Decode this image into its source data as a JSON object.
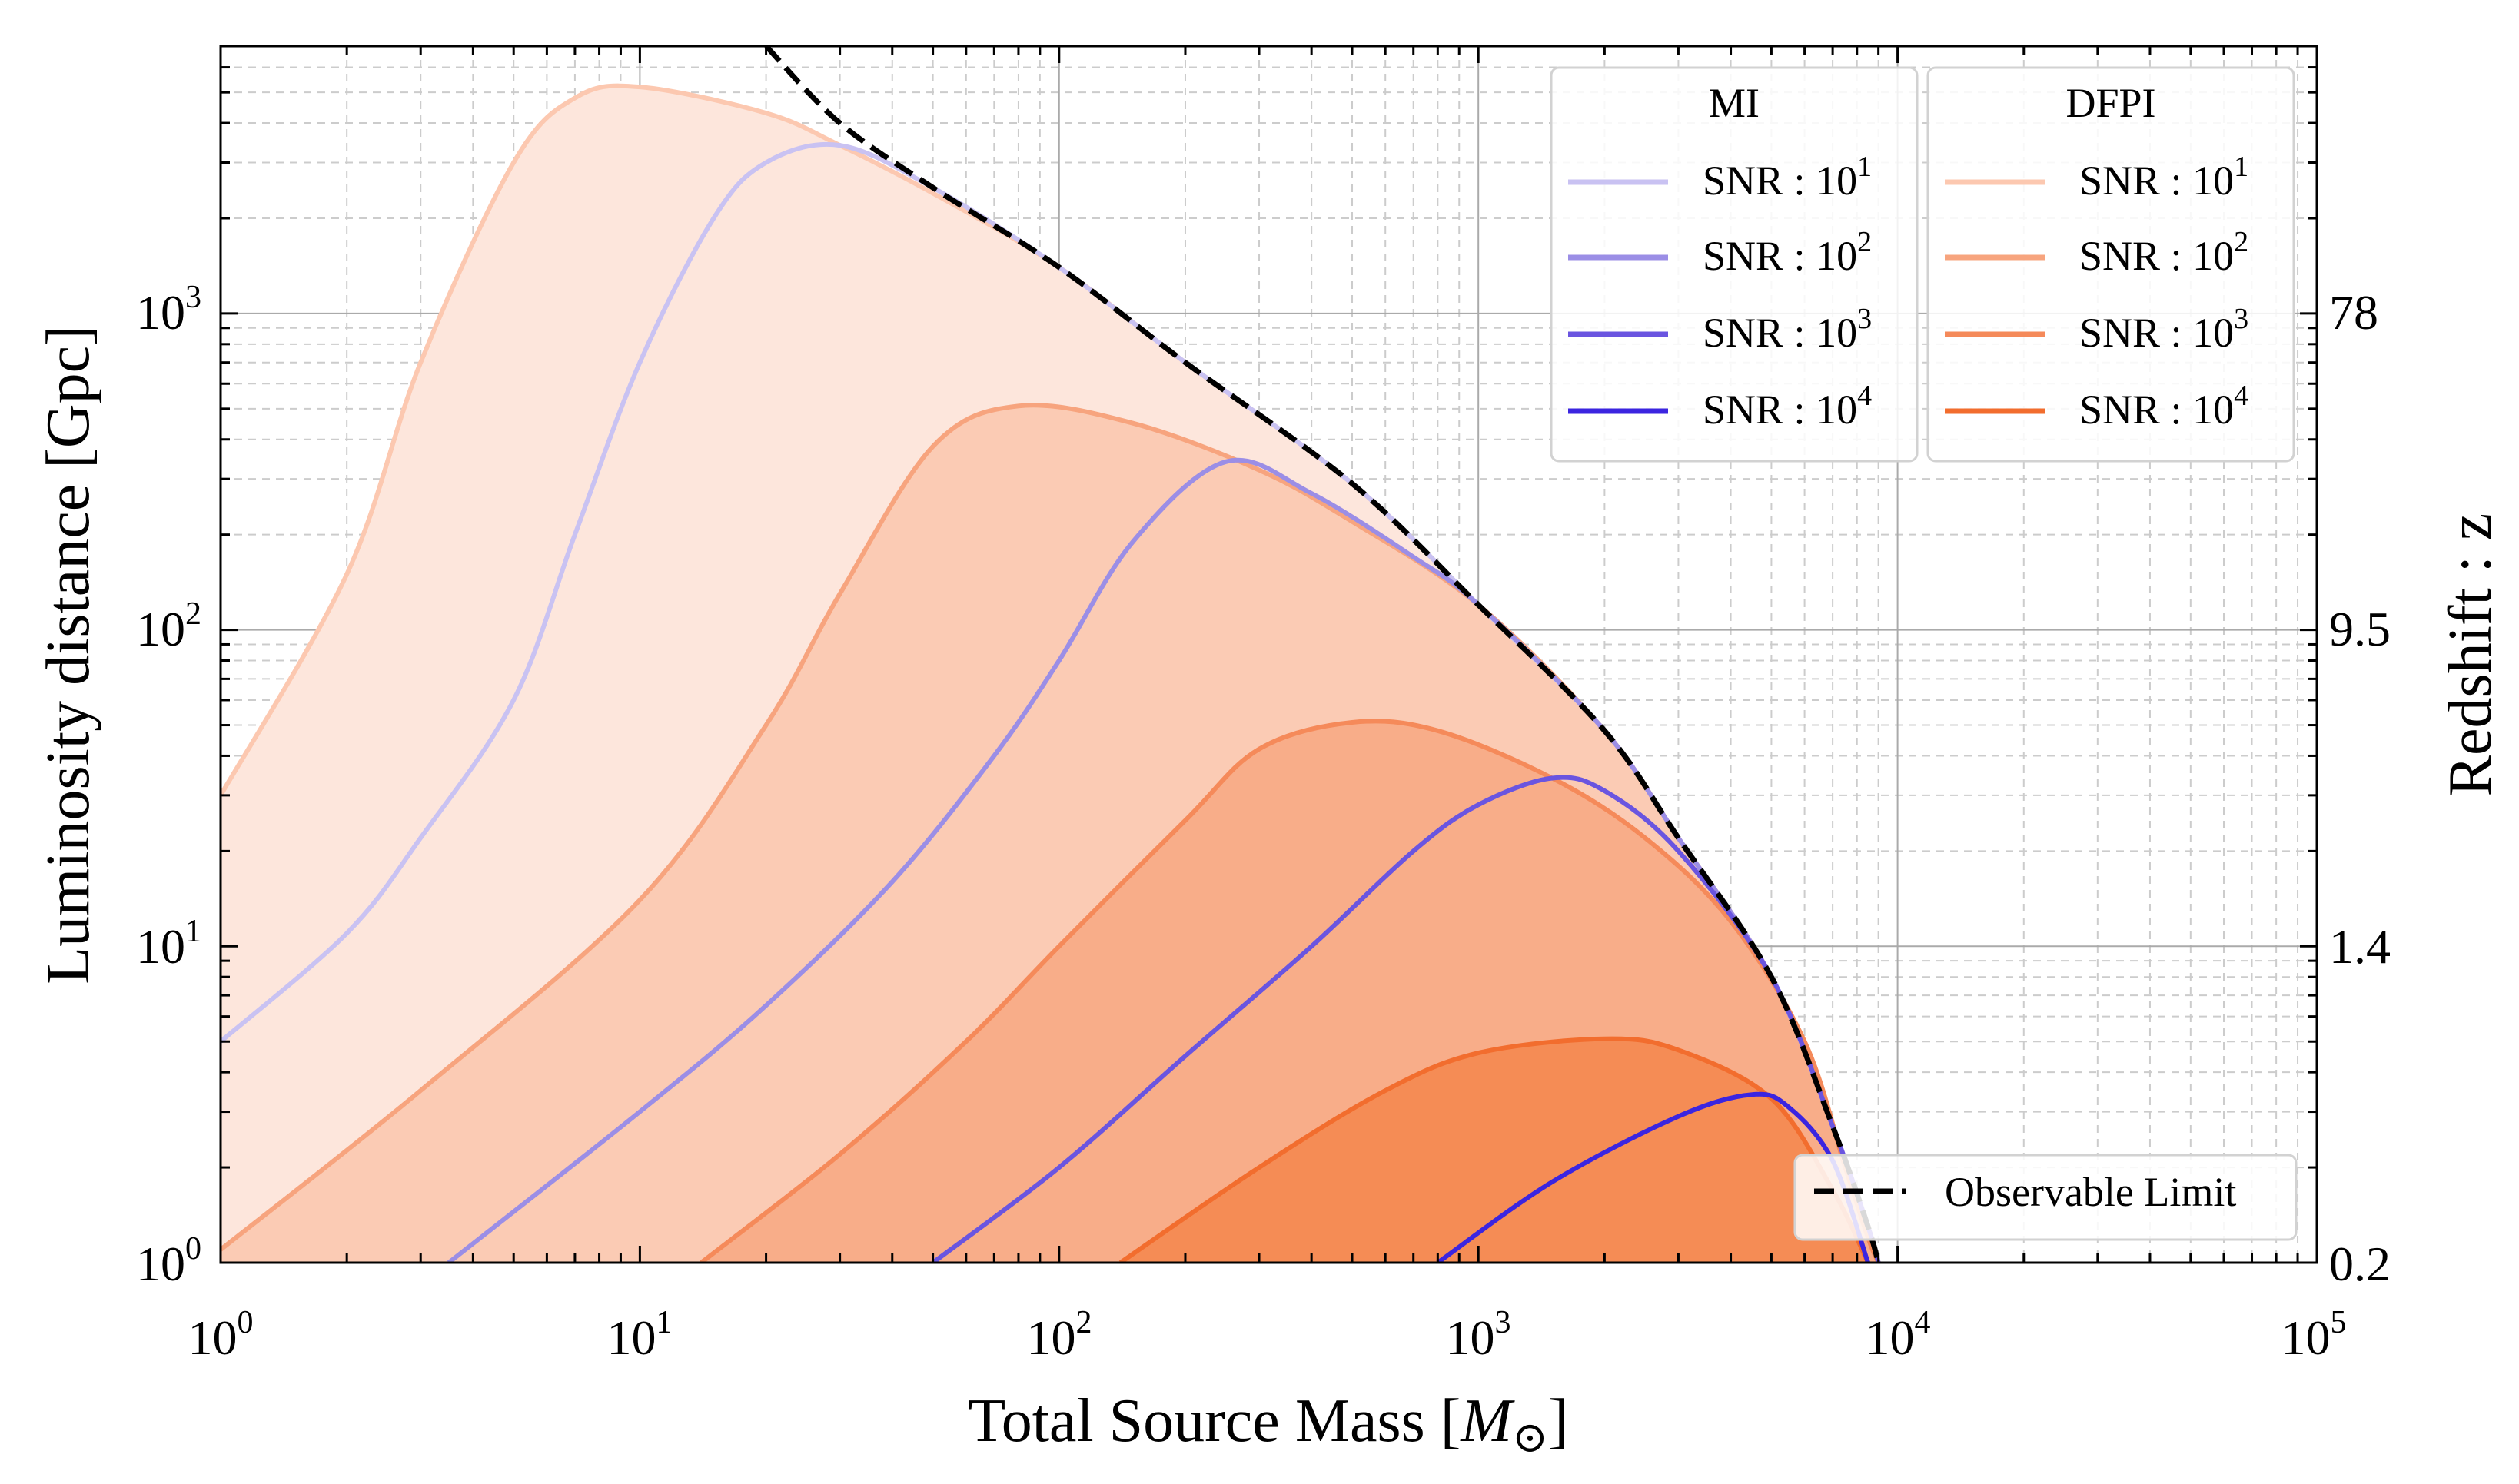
{
  "chart_data": {
    "type": "area",
    "title": "",
    "xlabel": "Total Source Mass [",
    "xlabel_symbol": "M",
    "xlabel_sub": "⊙",
    "xlabel_close": "]",
    "ylabel": "Luminosity distance [Gpc]",
    "y2label": "Redshift : z",
    "x_scale": "log",
    "y_scale": "log",
    "xlim": [
      1,
      100000
    ],
    "ylim": [
      1,
      7000
    ],
    "grid": true,
    "x_ticks": [
      {
        "base": "10",
        "exp": "0",
        "value": 1
      },
      {
        "base": "10",
        "exp": "1",
        "value": 10
      },
      {
        "base": "10",
        "exp": "2",
        "value": 100
      },
      {
        "base": "10",
        "exp": "3",
        "value": 1000
      },
      {
        "base": "10",
        "exp": "4",
        "value": 10000
      },
      {
        "base": "10",
        "exp": "5",
        "value": 100000
      }
    ],
    "y_ticks": [
      {
        "base": "10",
        "exp": "0",
        "value": 1
      },
      {
        "base": "10",
        "exp": "1",
        "value": 10
      },
      {
        "base": "10",
        "exp": "2",
        "value": 100
      },
      {
        "base": "10",
        "exp": "3",
        "value": 1000
      }
    ],
    "y2_ticks": [
      {
        "label": "0.2",
        "at_distance": 1
      },
      {
        "label": "1.4",
        "at_distance": 10
      },
      {
        "label": "9.5",
        "at_distance": 100
      },
      {
        "label": "78",
        "at_distance": 1000
      }
    ],
    "observable_limit": {
      "label": "Observable Limit",
      "color": "#000000",
      "points": [
        [
          20,
          7000
        ],
        [
          30,
          4000
        ],
        [
          50,
          2500
        ],
        [
          100,
          1400
        ],
        [
          200,
          700
        ],
        [
          500,
          290
        ],
        [
          1000,
          120
        ],
        [
          2000,
          48
        ],
        [
          3000,
          22
        ],
        [
          5000,
          8
        ],
        [
          7000,
          2.7
        ],
        [
          8500,
          1.3
        ],
        [
          9000,
          1
        ]
      ]
    },
    "legends": [
      {
        "title": "MI",
        "position": "top-right",
        "group": "MI"
      },
      {
        "title": "DFPI",
        "position": "top-right",
        "group": "DFPI"
      },
      {
        "title": "",
        "position": "lower-right",
        "group": "limit"
      }
    ],
    "series": [
      {
        "name": "DFPI SNR : 10^1",
        "group": "DFPI",
        "snr_base": "10",
        "snr_exp": "1",
        "color": "#fcc8b0",
        "fill": "#fde6dc",
        "points": [
          [
            1,
            30
          ],
          [
            2,
            150
          ],
          [
            3,
            700
          ],
          [
            5,
            3000
          ],
          [
            7,
            4800
          ],
          [
            10,
            5200
          ],
          [
            20,
            4300
          ],
          [
            30,
            3400
          ],
          [
            50,
            2400
          ],
          [
            100,
            1400
          ],
          [
            200,
            700
          ],
          [
            500,
            290
          ],
          [
            1000,
            120
          ],
          [
            2000,
            48
          ],
          [
            3000,
            22
          ],
          [
            5000,
            8
          ],
          [
            7000,
            2.7
          ],
          [
            8500,
            1.3
          ],
          [
            9000,
            1
          ]
        ]
      },
      {
        "name": "MI SNR : 10^1",
        "group": "MI",
        "snr_base": "10",
        "snr_exp": "1",
        "color": "#c9c2f2",
        "points": [
          [
            1,
            5
          ],
          [
            2,
            11
          ],
          [
            3,
            22
          ],
          [
            5,
            60
          ],
          [
            7,
            200
          ],
          [
            10,
            700
          ],
          [
            15,
            2000
          ],
          [
            20,
            3000
          ],
          [
            30,
            3400
          ],
          [
            50,
            2500
          ],
          [
            100,
            1400
          ],
          [
            200,
            700
          ],
          [
            500,
            290
          ],
          [
            1000,
            120
          ],
          [
            2000,
            48
          ],
          [
            3000,
            22
          ],
          [
            5000,
            8
          ],
          [
            7000,
            2.7
          ],
          [
            8500,
            1.3
          ],
          [
            9000,
            1
          ]
        ]
      },
      {
        "name": "DFPI SNR : 10^2",
        "group": "DFPI",
        "snr_base": "10",
        "snr_exp": "2",
        "color": "#f7a47e",
        "fill": "#fbcbb4",
        "points": [
          [
            1,
            1.1
          ],
          [
            3,
            3.5
          ],
          [
            10,
            14
          ],
          [
            20,
            50
          ],
          [
            30,
            130
          ],
          [
            50,
            380
          ],
          [
            80,
            510
          ],
          [
            150,
            450
          ],
          [
            300,
            320
          ],
          [
            500,
            220
          ],
          [
            1000,
            120
          ],
          [
            2000,
            48
          ],
          [
            3000,
            22
          ],
          [
            5000,
            8
          ],
          [
            7000,
            2.7
          ],
          [
            8500,
            1.3
          ],
          [
            9000,
            1
          ]
        ]
      },
      {
        "name": "MI SNR : 10^2",
        "group": "MI",
        "snr_base": "10",
        "snr_exp": "2",
        "color": "#9b8ee6",
        "points": [
          [
            3.5,
            1
          ],
          [
            10,
            3
          ],
          [
            20,
            6.5
          ],
          [
            40,
            16
          ],
          [
            70,
            40
          ],
          [
            100,
            80
          ],
          [
            150,
            190
          ],
          [
            250,
            340
          ],
          [
            400,
            270
          ],
          [
            700,
            170
          ],
          [
            1000,
            120
          ],
          [
            2000,
            48
          ],
          [
            3000,
            22
          ],
          [
            5000,
            8
          ],
          [
            7000,
            2.7
          ],
          [
            8500,
            1.3
          ],
          [
            9000,
            1
          ]
        ]
      },
      {
        "name": "DFPI SNR : 10^3",
        "group": "DFPI",
        "snr_base": "10",
        "snr_exp": "3",
        "color": "#f58a5a",
        "fill": "#f8ad89",
        "points": [
          [
            14,
            1
          ],
          [
            30,
            2.2
          ],
          [
            60,
            5
          ],
          [
            100,
            10
          ],
          [
            200,
            25
          ],
          [
            300,
            42
          ],
          [
            500,
            51
          ],
          [
            800,
            48
          ],
          [
            1500,
            34
          ],
          [
            2500,
            22
          ],
          [
            4000,
            12
          ],
          [
            6000,
            5
          ],
          [
            7500,
            2
          ],
          [
            8500,
            1.2
          ],
          [
            9000,
            1
          ]
        ]
      },
      {
        "name": "MI SNR : 10^3",
        "group": "MI",
        "snr_base": "10",
        "snr_exp": "3",
        "color": "#6a55e0",
        "points": [
          [
            50,
            1
          ],
          [
            100,
            2
          ],
          [
            200,
            4.5
          ],
          [
            400,
            10
          ],
          [
            700,
            20
          ],
          [
            1000,
            28
          ],
          [
            1500,
            34
          ],
          [
            2000,
            31
          ],
          [
            3000,
            20
          ],
          [
            5000,
            8
          ],
          [
            7000,
            2.7
          ],
          [
            8500,
            1.3
          ],
          [
            9000,
            1
          ]
        ]
      },
      {
        "name": "DFPI SNR : 10^4",
        "group": "DFPI",
        "snr_base": "10",
        "snr_exp": "4",
        "color": "#f26d2e",
        "fill": "#f58c55",
        "points": [
          [
            140,
            1
          ],
          [
            300,
            2
          ],
          [
            600,
            3.5
          ],
          [
            1000,
            4.6
          ],
          [
            2000,
            5.1
          ],
          [
            3000,
            4.7
          ],
          [
            5000,
            3.3
          ],
          [
            7000,
            1.7
          ],
          [
            8500,
            1
          ]
        ]
      },
      {
        "name": "MI SNR : 10^4",
        "group": "MI",
        "snr_base": "10",
        "snr_exp": "4",
        "color": "#3b25e0",
        "points": [
          [
            800,
            1
          ],
          [
            1500,
            1.8
          ],
          [
            3000,
            2.9
          ],
          [
            4500,
            3.4
          ],
          [
            5500,
            3.1
          ],
          [
            7000,
            2.1
          ],
          [
            8500,
            1
          ]
        ]
      }
    ],
    "legend_label_prefix": "SNR : "
  }
}
